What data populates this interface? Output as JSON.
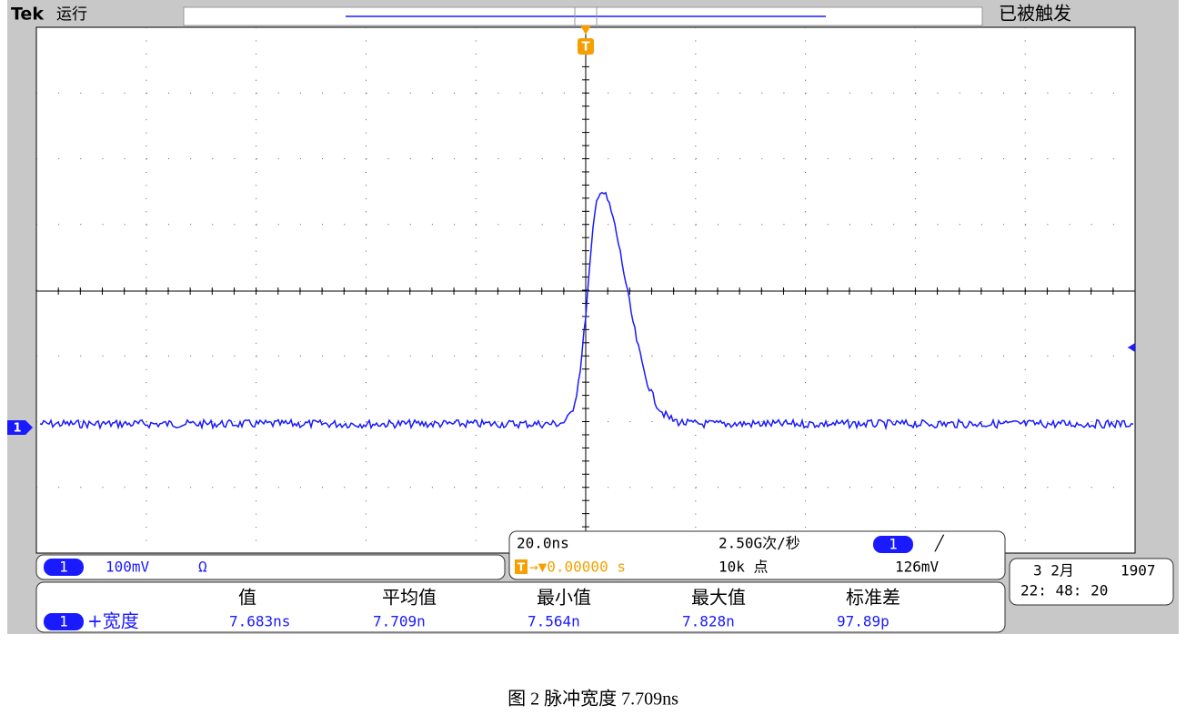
{
  "header": {
    "brand": "Tek",
    "status": "运行",
    "trigger_state": "已被触发",
    "trigger_marker": "T"
  },
  "ground_marker": "1",
  "channel": {
    "badge": "1",
    "scale": "100mV",
    "termination": "Ω"
  },
  "timebase": {
    "scale": "20.0ns",
    "sample_rate": "2.50G次/秒",
    "trigger_source": "1",
    "trigger_slope": "╱",
    "trigger_icon": "T",
    "trigger_position": "→▼0.00000 s",
    "record_length": "10k 点",
    "trigger_level": "126mV"
  },
  "measurements": {
    "headers": [
      "值",
      "平均值",
      "最小值",
      "最大值",
      "标准差"
    ],
    "rows": [
      {
        "source": "1",
        "label": "+宽度",
        "values": [
          "7.683ns",
          "7.709n",
          "7.564n",
          "7.828n",
          "97.89p"
        ]
      }
    ]
  },
  "datetime": {
    "date": "3 2月",
    "year": "1907",
    "time": "22: 48: 20"
  },
  "caption": "图 2 脉冲宽度 7.709ns"
}
